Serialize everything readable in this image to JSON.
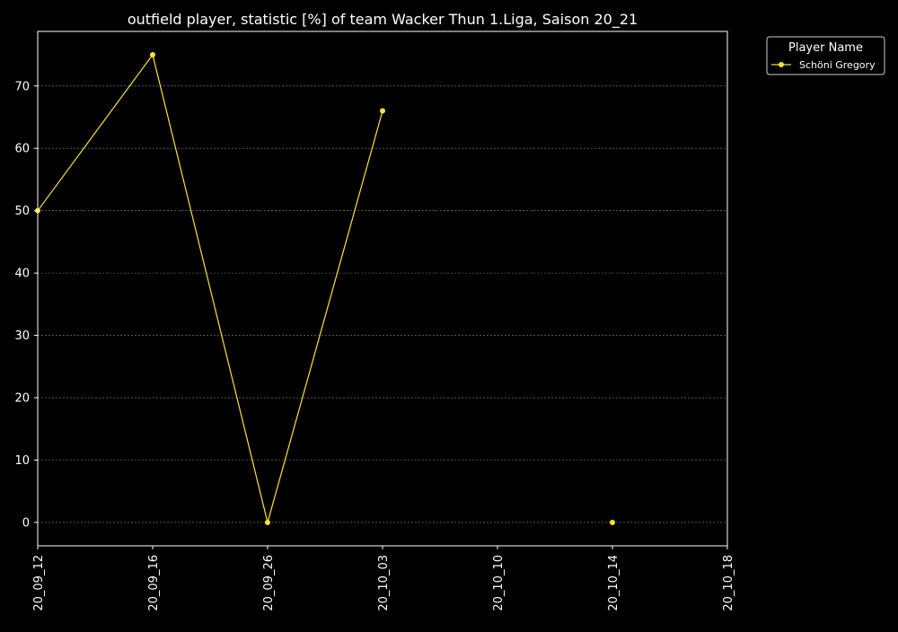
{
  "chart_data": {
    "type": "line",
    "title": "outfield player, statistic [%] of team Wacker Thun 1.Liga, Saison 20_21",
    "xlabel": "",
    "ylabel": "",
    "categories": [
      "20_09_12",
      "20_09_16",
      "20_09_26",
      "20_10_03",
      "20_10_10",
      "20_10_14",
      "20_10_18"
    ],
    "y_ticks": [
      0,
      10,
      20,
      30,
      40,
      50,
      60,
      70
    ],
    "ylim": [
      -3.75,
      78.75
    ],
    "grid": true,
    "legend": {
      "title": "Player Name",
      "placement": "outside-top-right"
    },
    "series": [
      {
        "name": "Schöni Gregory",
        "color": "#ffe135",
        "points": [
          {
            "x": "20_09_12",
            "y": 50
          },
          {
            "x": "20_09_16",
            "y": 75
          },
          {
            "x": "20_09_26",
            "y": 0
          },
          {
            "x": "20_10_03",
            "y": 66
          },
          {
            "x": "20_10_10",
            "y": null
          },
          {
            "x": "20_10_14",
            "y": 0
          },
          {
            "x": "20_10_18",
            "y": null
          }
        ]
      }
    ],
    "colors": {
      "background": "#000000",
      "axes": "#ffffff",
      "text": "#ffffff",
      "grid": "#888888"
    }
  }
}
